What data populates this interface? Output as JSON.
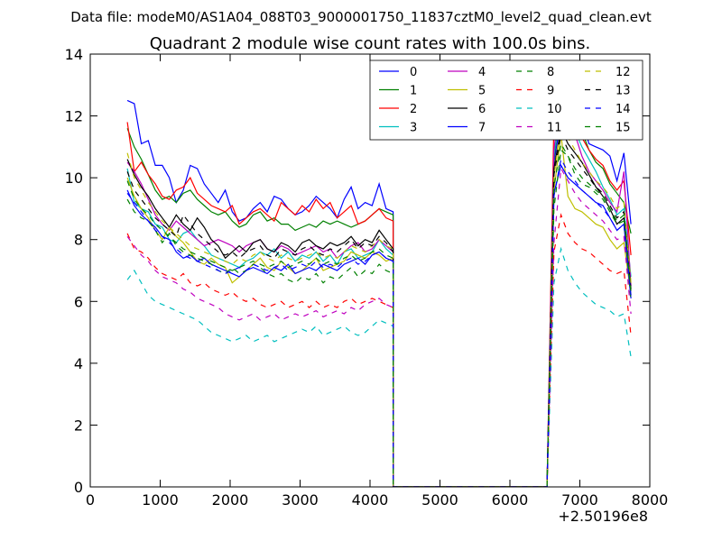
{
  "chart_data": {
    "type": "line",
    "suptitle": "Data file: modeM0/AS1A04_088T03_9000001750_11837cztM0_level2_quad_clean.evt",
    "title": "Quadrant 2 module wise count rates with 100.0s bins.",
    "xlabel": "",
    "ylabel": "",
    "x_offset_label": "+2.50196e8",
    "xlim": [
      0,
      8000
    ],
    "ylim": [
      0,
      14
    ],
    "xticks": [
      0,
      1000,
      2000,
      3000,
      4000,
      5000,
      6000,
      7000,
      8000
    ],
    "yticks": [
      0,
      2,
      4,
      6,
      8,
      10,
      12,
      14
    ],
    "grid": false,
    "legend_position": "top-right",
    "legend_columns": 4,
    "x_start": 530,
    "x_step": 100,
    "gap_x_end": 4330,
    "gap_x_resume": 6530,
    "gap_x_ramp_start": 6530,
    "series": [
      {
        "name": "0",
        "color": "#0000ff",
        "style": "solid",
        "seg1": [
          12.5,
          12.4,
          11.1,
          11.2,
          10.4,
          10.4,
          10.0,
          9.2,
          9.6,
          10.4,
          10.3,
          9.8,
          9.5,
          9.2,
          9.6,
          8.9,
          8.6,
          8.7,
          9.0,
          9.2,
          8.9,
          9.4,
          9.3,
          9.0,
          8.8,
          8.9,
          9.1,
          9.4,
          9.2,
          9.0,
          8.7,
          9.3,
          9.7,
          9.0,
          9.2,
          9.1,
          9.8,
          9.0,
          8.9
        ],
        "seg2": [
          10.5,
          11.9,
          12.4,
          12.5,
          11.9,
          11.1,
          11.0,
          10.9,
          10.7,
          9.9,
          10.8,
          8.5
        ]
      },
      {
        "name": "1",
        "color": "#008000",
        "style": "solid",
        "seg1": [
          11.6,
          11.0,
          10.6,
          10.1,
          9.6,
          9.3,
          9.4,
          9.2,
          9.5,
          9.6,
          9.3,
          9.1,
          8.9,
          8.8,
          8.9,
          8.6,
          8.4,
          8.5,
          8.8,
          8.9,
          8.6,
          8.7,
          8.5,
          8.5,
          8.3,
          8.4,
          8.5,
          8.4,
          8.6,
          8.5,
          8.6,
          8.5,
          8.4,
          8.5,
          8.6,
          8.8,
          9.0,
          8.9,
          8.8
        ],
        "seg2": [
          10.6,
          12.5,
          12.4,
          12.0,
          11.5,
          10.9,
          10.5,
          10.3,
          9.8,
          9.5,
          9.2,
          8.2
        ]
      },
      {
        "name": "2",
        "color": "#ff0000",
        "style": "solid",
        "seg1": [
          11.8,
          10.2,
          10.5,
          10.1,
          9.8,
          9.4,
          9.3,
          9.6,
          9.7,
          10.0,
          9.5,
          9.3,
          9.1,
          9.0,
          8.9,
          9.1,
          8.5,
          8.7,
          8.9,
          9.0,
          8.8,
          8.6,
          9.2,
          9.0,
          8.8,
          9.1,
          8.9,
          9.3,
          9.0,
          9.2,
          8.7,
          8.9,
          9.1,
          8.5,
          8.6,
          8.8,
          9.0,
          8.7,
          8.6
        ],
        "seg2": [
          11.9,
          13.0,
          12.4,
          11.8,
          11.3,
          10.9,
          10.6,
          10.4,
          9.9,
          9.6,
          9.9,
          7.5
        ]
      },
      {
        "name": "3",
        "color": "#00bfbf",
        "style": "solid",
        "seg1": [
          10.3,
          9.2,
          9.0,
          8.9,
          8.5,
          8.4,
          8.0,
          7.9,
          8.2,
          8.3,
          8.0,
          7.8,
          7.5,
          7.4,
          7.3,
          7.2,
          7.1,
          7.3,
          7.4,
          7.6,
          7.5,
          7.7,
          7.4,
          7.6,
          7.3,
          7.5,
          7.4,
          7.6,
          7.3,
          7.5,
          7.2,
          7.6,
          7.7,
          7.4,
          7.5,
          7.6,
          8.0,
          7.7,
          7.5
        ],
        "seg2": [
          10.7,
          12.6,
          11.9,
          11.5,
          11.0,
          10.6,
          10.2,
          9.7,
          9.3,
          8.8,
          9.0,
          6.8
        ]
      },
      {
        "name": "4",
        "color": "#bf00bf",
        "style": "solid",
        "seg1": [
          10.5,
          10.2,
          9.8,
          9.3,
          8.8,
          8.5,
          8.3,
          8.6,
          8.4,
          8.2,
          8.0,
          7.8,
          7.9,
          8.0,
          7.9,
          7.8,
          7.6,
          7.8,
          7.9,
          8.0,
          7.7,
          7.6,
          7.8,
          7.7,
          7.5,
          7.6,
          7.7,
          7.8,
          7.6,
          7.7,
          7.4,
          7.6,
          7.8,
          7.9,
          7.6,
          7.7,
          8.0,
          7.8,
          7.6
        ],
        "seg2": [
          10.9,
          12.9,
          12.1,
          11.4,
          10.7,
          10.2,
          9.9,
          9.6,
          9.2,
          8.9,
          10.2,
          6.5
        ]
      },
      {
        "name": "5",
        "color": "#bfbf00",
        "style": "solid",
        "seg1": [
          10.0,
          9.4,
          9.0,
          8.7,
          8.3,
          8.0,
          8.4,
          8.1,
          7.9,
          7.6,
          7.3,
          7.2,
          7.4,
          7.2,
          7.1,
          6.6,
          6.8,
          7.0,
          7.2,
          7.4,
          7.1,
          7.0,
          7.3,
          7.1,
          6.9,
          7.0,
          7.2,
          7.4,
          7.0,
          7.1,
          7.2,
          7.3,
          7.6,
          7.5,
          7.4,
          7.6,
          7.5,
          7.3,
          7.4
        ],
        "seg2": [
          9.6,
          11.4,
          9.4,
          9.0,
          8.9,
          8.7,
          8.5,
          8.4,
          8.0,
          7.7,
          7.9,
          6.2
        ]
      },
      {
        "name": "6",
        "color": "#000000",
        "style": "solid",
        "seg1": [
          10.6,
          10.1,
          9.7,
          9.4,
          9.0,
          8.7,
          8.4,
          8.8,
          8.5,
          8.3,
          8.7,
          8.4,
          8.0,
          7.8,
          7.4,
          7.6,
          7.8,
          7.6,
          7.9,
          8.0,
          7.7,
          7.6,
          7.9,
          7.8,
          7.6,
          7.9,
          8.0,
          7.8,
          7.7,
          7.9,
          7.8,
          7.9,
          8.1,
          7.8,
          8.0,
          7.9,
          8.3,
          8.0,
          7.7
        ],
        "seg2": [
          10.3,
          11.6,
          11.1,
          10.8,
          10.5,
          10.1,
          9.7,
          9.4,
          9.0,
          8.5,
          8.7,
          6.4
        ]
      },
      {
        "name": "7",
        "color": "#0000ff",
        "style": "solid",
        "seg1": [
          9.6,
          9.1,
          8.8,
          8.6,
          8.4,
          8.1,
          8.0,
          7.6,
          7.4,
          7.5,
          7.3,
          7.4,
          7.2,
          7.1,
          7.0,
          6.9,
          6.8,
          7.0,
          7.1,
          7.0,
          6.9,
          7.1,
          7.0,
          7.2,
          6.9,
          7.0,
          7.1,
          7.0,
          7.2,
          7.1,
          7.0,
          7.2,
          7.3,
          7.4,
          7.2,
          7.5,
          7.6,
          7.4,
          7.3
        ],
        "seg2": [
          9.5,
          10.4,
          10.0,
          9.8,
          9.6,
          9.4,
          9.2,
          9.1,
          8.7,
          8.3,
          8.5,
          6.1
        ]
      },
      {
        "name": "8",
        "color": "#008000",
        "style": "dashed",
        "seg1": [
          9.3,
          8.9,
          8.7,
          8.6,
          8.3,
          7.9,
          8.2,
          7.8,
          7.6,
          7.5,
          7.4,
          7.3,
          7.2,
          7.0,
          6.9,
          7.1,
          6.9,
          7.0,
          7.2,
          7.1,
          6.9,
          6.8,
          6.9,
          6.7,
          6.6,
          6.8,
          6.7,
          6.9,
          6.6,
          6.8,
          6.7,
          6.9,
          7.1,
          6.8,
          7.0,
          6.9,
          7.2,
          7.0,
          6.9
        ],
        "seg2": [
          9.0,
          10.9,
          10.7,
          10.1,
          9.8,
          9.7,
          9.5,
          9.3,
          8.9,
          8.5,
          8.6,
          6.0
        ]
      },
      {
        "name": "9",
        "color": "#ff0000",
        "style": "dashed",
        "seg1": [
          8.2,
          7.7,
          7.6,
          7.4,
          7.1,
          6.9,
          6.8,
          6.7,
          6.9,
          6.6,
          6.5,
          6.6,
          6.4,
          6.3,
          6.2,
          6.3,
          6.1,
          6.0,
          6.1,
          5.9,
          5.8,
          5.9,
          6.0,
          5.8,
          5.9,
          6.0,
          5.8,
          6.0,
          5.8,
          5.9,
          5.8,
          6.0,
          6.1,
          5.9,
          6.0,
          6.1,
          6.0,
          5.9,
          5.8
        ],
        "seg2": [
          7.6,
          8.8,
          8.2,
          7.9,
          7.7,
          7.6,
          7.4,
          7.2,
          7.0,
          6.9,
          7.0,
          4.9
        ]
      },
      {
        "name": "10",
        "color": "#00bfbf",
        "style": "dashed",
        "seg1": [
          6.7,
          7.0,
          6.6,
          6.2,
          6.0,
          5.9,
          5.8,
          5.7,
          5.6,
          5.5,
          5.4,
          5.2,
          5.0,
          4.9,
          4.8,
          4.7,
          4.8,
          4.9,
          4.7,
          4.8,
          4.9,
          4.7,
          4.8,
          4.9,
          5.0,
          5.1,
          5.0,
          5.2,
          4.9,
          5.0,
          5.1,
          5.2,
          5.0,
          4.9,
          5.0,
          5.2,
          5.4,
          5.3,
          5.2
        ],
        "seg2": [
          6.6,
          7.7,
          7.0,
          6.6,
          6.3,
          6.1,
          5.9,
          5.8,
          5.7,
          5.5,
          5.6,
          4.2
        ]
      },
      {
        "name": "11",
        "color": "#bf00bf",
        "style": "dashed",
        "seg1": [
          8.1,
          7.8,
          7.5,
          7.3,
          7.0,
          6.8,
          6.7,
          6.6,
          6.4,
          6.3,
          6.1,
          6.0,
          5.9,
          5.8,
          5.6,
          5.5,
          5.4,
          5.5,
          5.6,
          5.4,
          5.5,
          5.6,
          5.4,
          5.5,
          5.6,
          5.5,
          5.6,
          5.7,
          5.5,
          5.6,
          5.7,
          5.6,
          5.8,
          5.7,
          5.9,
          6.0,
          6.1,
          5.9,
          5.8
        ],
        "seg2": [
          7.9,
          10.3,
          9.9,
          9.5,
          9.2,
          9.0,
          8.8,
          8.6,
          8.3,
          8.0,
          8.1,
          5.6
        ]
      },
      {
        "name": "12",
        "color": "#bfbf00",
        "style": "dashed",
        "seg1": [
          10.8,
          10.0,
          9.6,
          9.2,
          8.9,
          8.6,
          8.4,
          8.2,
          8.0,
          7.8,
          7.7,
          7.6,
          7.5,
          7.4,
          7.3,
          7.2,
          7.4,
          7.3,
          7.5,
          7.6,
          7.4,
          7.3,
          7.5,
          7.4,
          7.3,
          7.4,
          7.5,
          7.6,
          7.4,
          7.5,
          7.4,
          7.6,
          7.8,
          7.7,
          7.6,
          7.8,
          8.0,
          7.8,
          7.7
        ],
        "seg2": [
          10.0,
          11.8,
          11.3,
          10.9,
          10.5,
          10.2,
          9.9,
          9.7,
          9.4,
          9.0,
          9.2,
          6.6
        ]
      },
      {
        "name": "13",
        "color": "#000000",
        "style": "dashed",
        "seg1": [
          10.2,
          9.6,
          9.3,
          9.0,
          8.7,
          8.5,
          8.3,
          8.1,
          8.8,
          8.5,
          8.2,
          8.0,
          7.8,
          7.6,
          7.5,
          7.6,
          7.4,
          7.6,
          7.7,
          7.8,
          7.5,
          7.4,
          7.7,
          7.6,
          7.5,
          7.7,
          7.8,
          7.6,
          7.5,
          7.7,
          7.6,
          7.8,
          8.0,
          7.7,
          7.9,
          7.8,
          8.1,
          7.9,
          7.6
        ],
        "seg2": [
          10.1,
          11.4,
          10.9,
          10.6,
          10.3,
          10.0,
          9.7,
          9.5,
          9.1,
          8.7,
          8.9,
          6.3
        ]
      },
      {
        "name": "14",
        "color": "#0000ff",
        "style": "dashed",
        "seg1": [
          9.5,
          9.2,
          8.9,
          8.6,
          8.3,
          8.1,
          7.9,
          7.7,
          7.5,
          7.4,
          7.3,
          7.2,
          7.1,
          7.0,
          6.9,
          7.0,
          7.1,
          7.0,
          7.2,
          7.1,
          7.0,
          7.1,
          7.2,
          7.0,
          7.1,
          7.2,
          7.1,
          7.3,
          7.1,
          7.2,
          7.1,
          7.3,
          7.4,
          7.2,
          7.3,
          7.5,
          7.6,
          7.4,
          7.3
        ],
        "seg2": [
          9.4,
          10.6,
          10.2,
          9.9,
          9.6,
          9.4,
          9.2,
          9.0,
          8.7,
          8.3,
          8.5,
          6.2
        ]
      },
      {
        "name": "15",
        "color": "#008000",
        "style": "dashed",
        "seg1": [
          9.9,
          9.3,
          9.0,
          8.8,
          8.5,
          8.3,
          8.1,
          7.9,
          7.7,
          7.6,
          7.5,
          7.4,
          7.3,
          7.2,
          7.1,
          7.0,
          7.1,
          7.2,
          7.3,
          7.2,
          7.1,
          7.2,
          7.3,
          7.1,
          7.2,
          7.3,
          7.2,
          7.4,
          7.2,
          7.3,
          7.2,
          7.4,
          7.5,
          7.3,
          7.4,
          7.6,
          7.7,
          7.5,
          7.4
        ],
        "seg2": [
          9.7,
          11.1,
          10.7,
          10.3,
          10.0,
          9.8,
          9.6,
          9.4,
          9.0,
          8.6,
          8.8,
          6.3
        ]
      }
    ]
  }
}
